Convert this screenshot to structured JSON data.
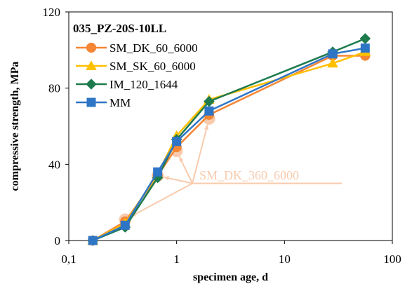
{
  "chart_data": {
    "type": "line",
    "title": "035_PZ-20S-10LL",
    "xlabel": "specimen age, d",
    "ylabel": "compressive strength, MPa",
    "xscale": "log",
    "xlim": [
      0.1,
      100
    ],
    "ylim": [
      0,
      120
    ],
    "xticks": [
      0.1,
      1,
      10,
      100
    ],
    "xtick_labels": [
      "0,1",
      "1",
      "10",
      "100"
    ],
    "yticks": [
      0,
      40,
      80,
      120
    ],
    "ytick_labels": [
      "0",
      "40",
      "80",
      "120"
    ],
    "grid": false,
    "legend_position": "top-left",
    "series": [
      {
        "name": "SM_DK_60_6000",
        "color": "#F58634",
        "marker": "circle",
        "x": [
          0.167,
          0.333,
          0.667,
          1,
          2,
          28,
          56
        ],
        "y": [
          0,
          10,
          34,
          49,
          66,
          97,
          97
        ]
      },
      {
        "name": "SM_SK_60_6000",
        "color": "#FFC000",
        "marker": "triangle",
        "x": [
          0.167,
          0.333,
          0.667,
          1,
          2,
          28,
          56
        ],
        "y": [
          0,
          9,
          35,
          55,
          74,
          93,
          99
        ]
      },
      {
        "name": "IM_120_1644",
        "color": "#1E7B4E",
        "marker": "diamond",
        "x": [
          0.167,
          0.333,
          0.667,
          1,
          2,
          28,
          56
        ],
        "y": [
          0,
          7,
          33,
          53,
          73,
          99,
          106
        ]
      },
      {
        "name": "MM",
        "color": "#2E75C6",
        "marker": "square",
        "x": [
          0.167,
          0.333,
          0.667,
          1,
          2,
          28,
          56
        ],
        "y": [
          0,
          8,
          36,
          52,
          68,
          98,
          101
        ]
      },
      {
        "name": "SM_DK_360_6000",
        "color": "#F8CBAD",
        "marker": "circle",
        "x": [
          0.333,
          0.667,
          1,
          2
        ],
        "y": [
          11,
          34,
          47,
          64
        ]
      }
    ],
    "annotation": {
      "text": "SM_DK_360_6000",
      "color": "#F8CBAD",
      "anchor": [
        30,
        30
      ],
      "arrows_to": [
        [
          0.333,
          11
        ],
        [
          0.667,
          34
        ],
        [
          1,
          47
        ],
        [
          2,
          64
        ]
      ]
    }
  }
}
